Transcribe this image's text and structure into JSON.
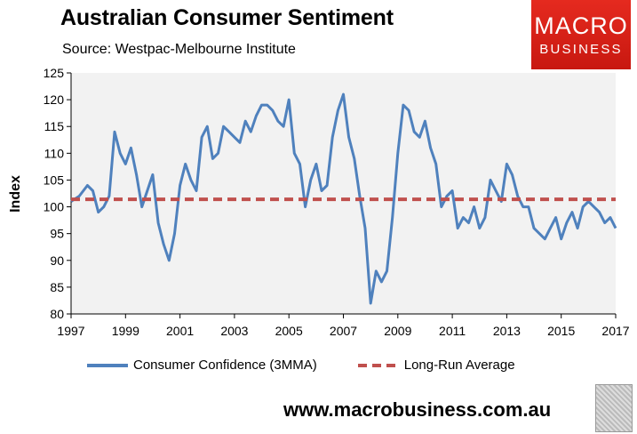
{
  "header": {
    "title": "Australian Consumer Sentiment",
    "subtitle": "Source: Westpac-Melbourne Institute"
  },
  "logo": {
    "line1": "MACRO",
    "line2": "BUSINESS"
  },
  "footer": {
    "url": "www.macrobusiness.com.au"
  },
  "colors": {
    "series": "#4f81bd",
    "average": "#c0504d",
    "plot_bg": "#f2f2f2",
    "logo_red": "#e52a1f"
  },
  "icons": {
    "footer_logo": "wolf-icon"
  },
  "chart_data": {
    "type": "line",
    "title": "Australian Consumer Sentiment",
    "subtitle": "Source: Westpac-Melbourne Institute",
    "ylabel": "Index",
    "xlabel": "",
    "xlim": [
      1997,
      2017
    ],
    "ylim": [
      80,
      125
    ],
    "x_ticks": [
      "1997",
      "1999",
      "2001",
      "2003",
      "2005",
      "2007",
      "2009",
      "2011",
      "2013",
      "2015",
      "2017"
    ],
    "y_ticks": [
      "80",
      "85",
      "90",
      "95",
      "100",
      "105",
      "110",
      "115",
      "120",
      "125"
    ],
    "grid": false,
    "legend": "bottom",
    "series": [
      {
        "name": "Consumer Confidence (3MMA)",
        "x": [
          1997.0,
          1997.3,
          1997.6,
          1997.8,
          1998.0,
          1998.2,
          1998.4,
          1998.6,
          1998.8,
          1999.0,
          1999.2,
          1999.4,
          1999.6,
          1999.8,
          2000.0,
          2000.2,
          2000.4,
          2000.6,
          2000.8,
          2001.0,
          2001.2,
          2001.4,
          2001.6,
          2001.8,
          2002.0,
          2002.2,
          2002.4,
          2002.6,
          2002.8,
          2003.0,
          2003.2,
          2003.4,
          2003.6,
          2003.8,
          2004.0,
          2004.2,
          2004.4,
          2004.6,
          2004.8,
          2005.0,
          2005.2,
          2005.4,
          2005.6,
          2005.8,
          2006.0,
          2006.2,
          2006.4,
          2006.6,
          2006.8,
          2007.0,
          2007.2,
          2007.4,
          2007.6,
          2007.8,
          2008.0,
          2008.2,
          2008.4,
          2008.6,
          2008.8,
          2009.0,
          2009.2,
          2009.4,
          2009.6,
          2009.8,
          2010.0,
          2010.2,
          2010.4,
          2010.6,
          2010.8,
          2011.0,
          2011.2,
          2011.4,
          2011.6,
          2011.8,
          2012.0,
          2012.2,
          2012.4,
          2012.6,
          2012.8,
          2013.0,
          2013.2,
          2013.4,
          2013.6,
          2013.8,
          2014.0,
          2014.2,
          2014.4,
          2014.6,
          2014.8,
          2015.0,
          2015.2,
          2015.4,
          2015.6,
          2015.8,
          2016.0,
          2016.2,
          2016.4,
          2016.6,
          2016.8,
          2017.0
        ],
        "values": [
          101,
          102,
          104,
          103,
          99,
          100,
          102,
          114,
          110,
          108,
          111,
          106,
          100,
          103,
          106,
          97,
          93,
          90,
          95,
          104,
          108,
          105,
          103,
          113,
          115,
          109,
          110,
          115,
          114,
          113,
          112,
          116,
          114,
          117,
          119,
          119,
          118,
          116,
          115,
          120,
          110,
          108,
          100,
          105,
          108,
          103,
          104,
          113,
          118,
          121,
          113,
          109,
          102,
          96,
          82,
          88,
          86,
          88,
          98,
          110,
          119,
          118,
          114,
          113,
          116,
          111,
          108,
          100,
          102,
          103,
          96,
          98,
          97,
          100,
          96,
          98,
          105,
          103,
          101,
          108,
          106,
          102,
          100,
          100,
          96,
          95,
          94,
          96,
          98,
          94,
          97,
          99,
          96,
          100,
          101,
          100,
          99,
          97,
          98,
          96
        ]
      },
      {
        "name": "Long-Run Average",
        "x": [
          1997,
          2017
        ],
        "values": [
          101.4,
          101.4
        ]
      }
    ]
  }
}
